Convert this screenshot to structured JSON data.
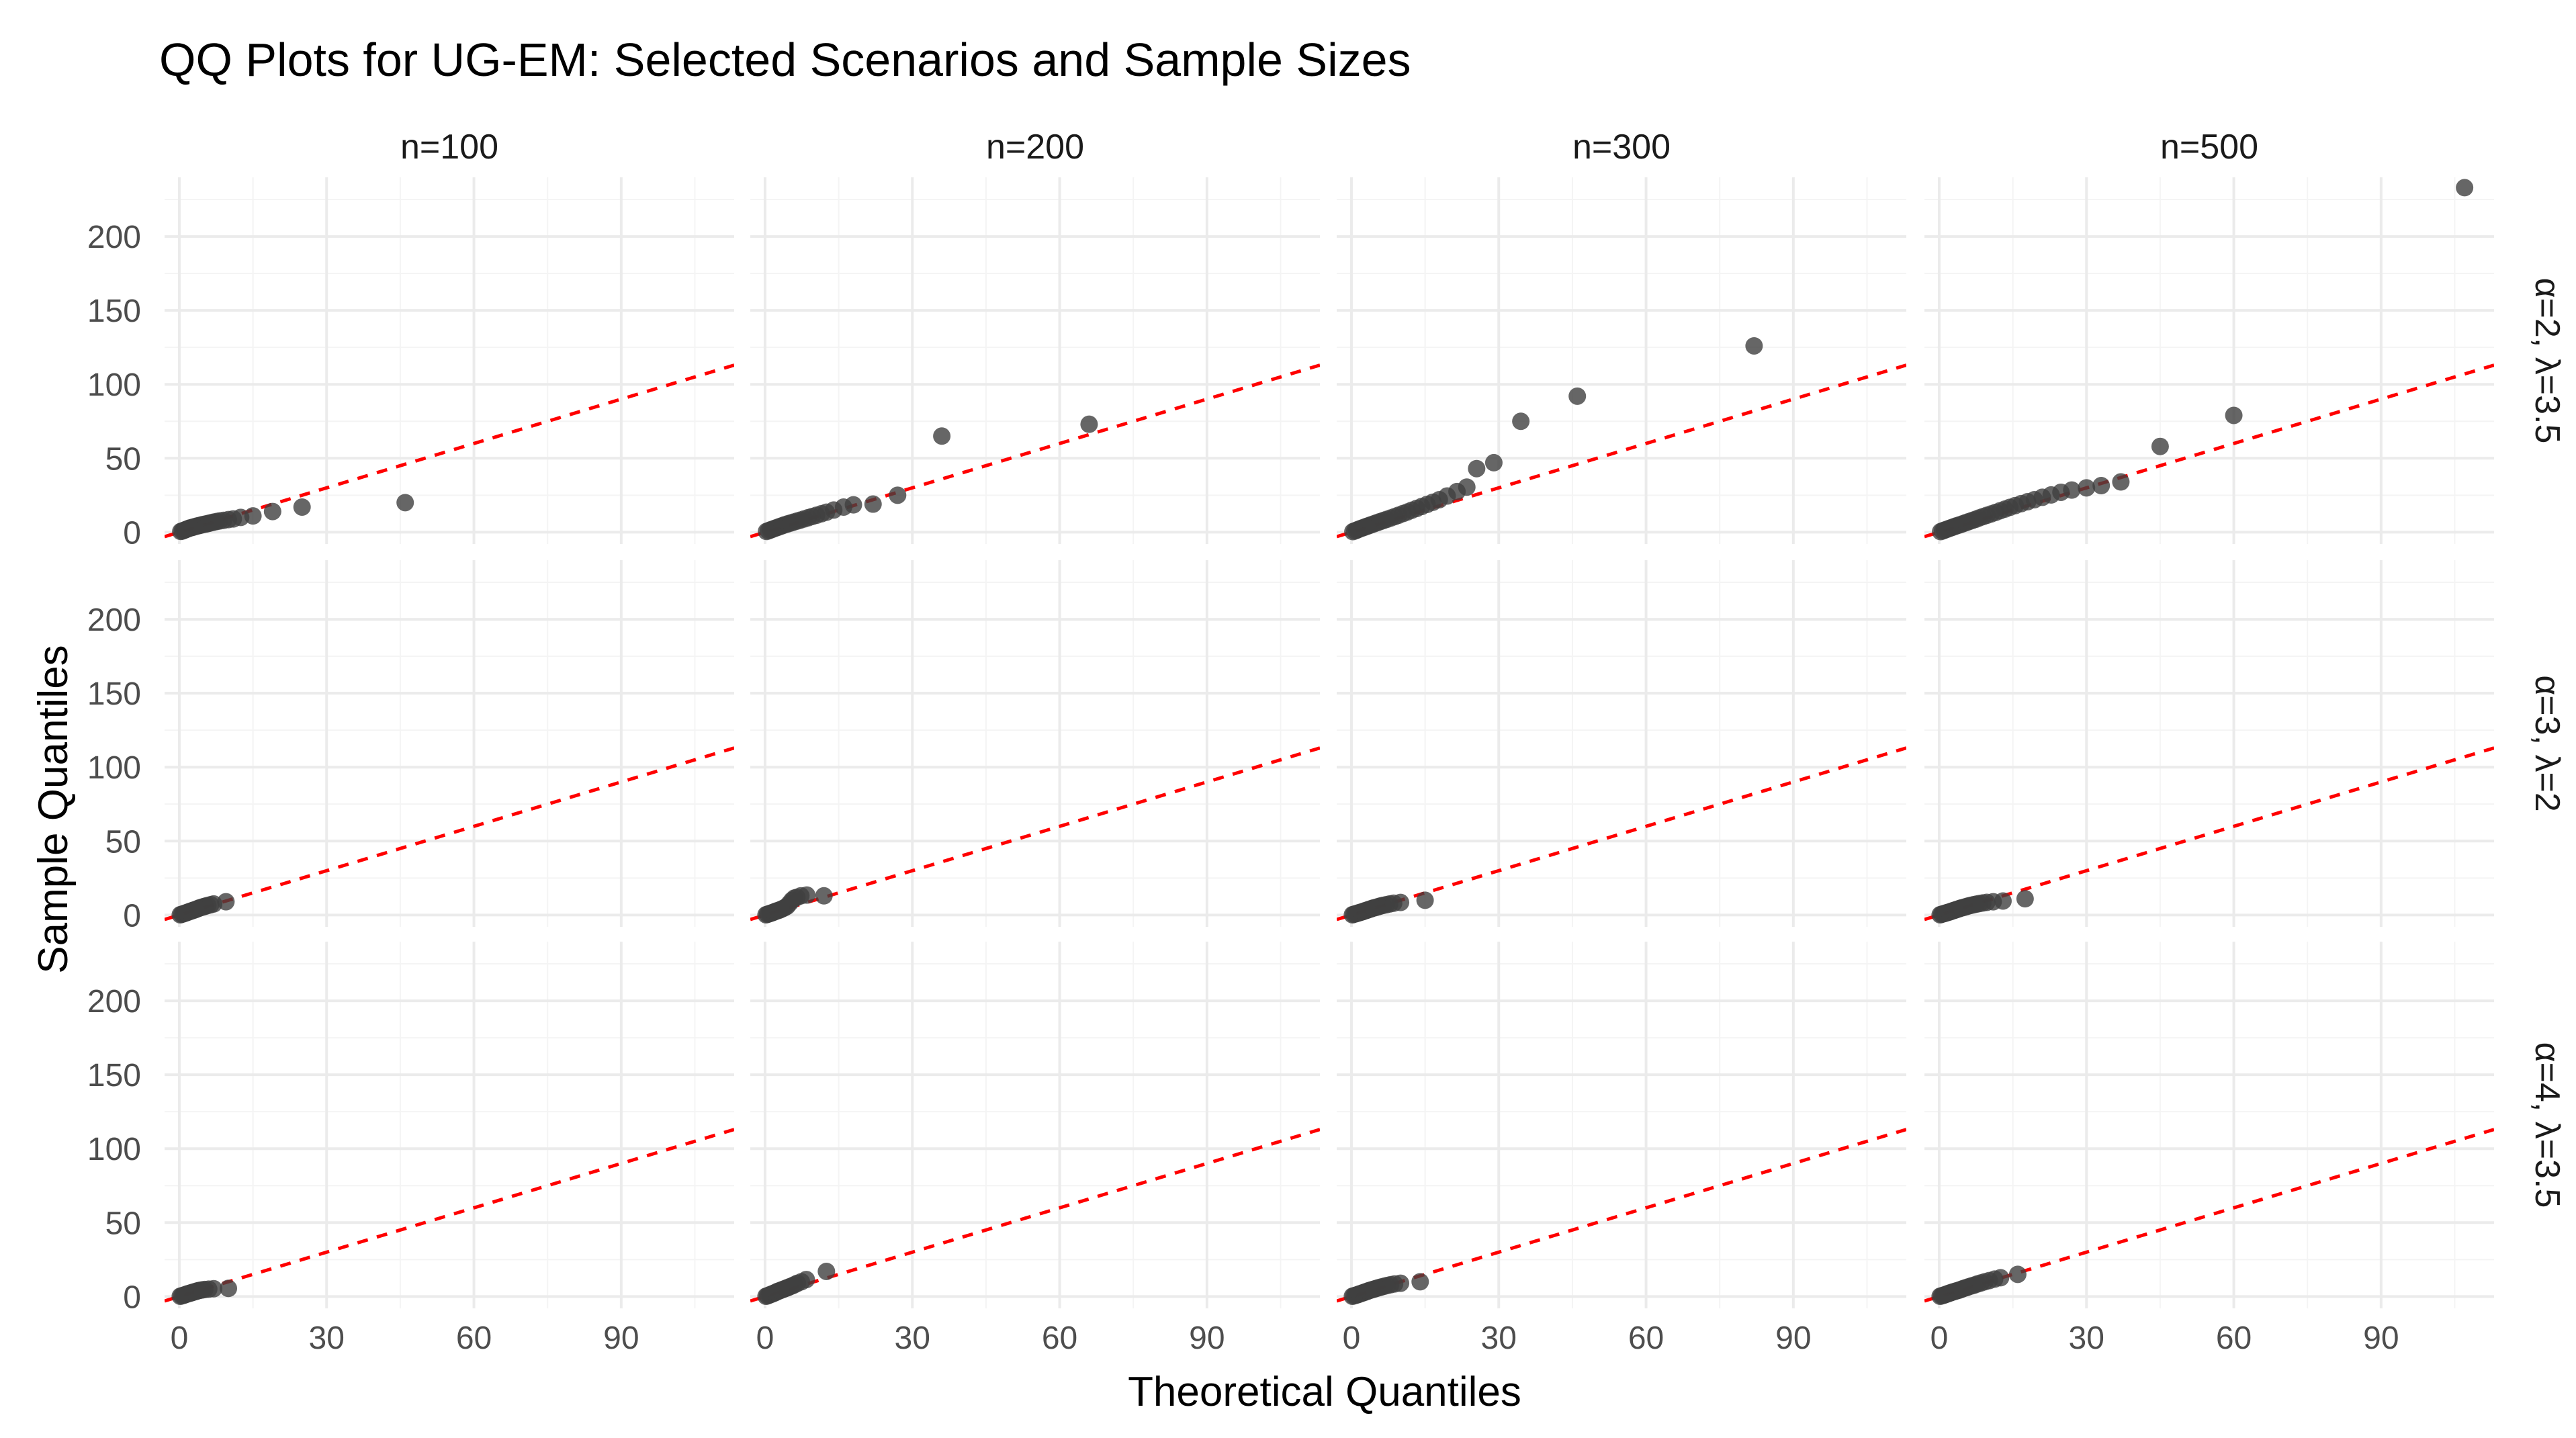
{
  "chart_data": {
    "type": "scatter",
    "title": "QQ Plots for UG-EM: Selected Scenarios and Sample Sizes",
    "xlabel": "Theoretical Quantiles",
    "ylabel": "Sample Quantiles",
    "xlim": [
      -3,
      113
    ],
    "ylim": [
      -8,
      240
    ],
    "x_ticks": [
      0,
      30,
      60,
      90
    ],
    "x_tick_labels": [
      "0",
      "30",
      "60",
      "90"
    ],
    "y_ticks": [
      0,
      50,
      100,
      150,
      200
    ],
    "y_tick_labels": [
      "0",
      "50",
      "100",
      "150",
      "200"
    ],
    "grid": true,
    "columns": [
      "n=100",
      "n=200",
      "n=300",
      "n=500"
    ],
    "rows": [
      "α=2, λ=3.5",
      "α=3, λ=2",
      "α=4, λ=3.5"
    ],
    "reference_line": {
      "type": "identity",
      "slope": 1,
      "intercept": 0,
      "color": "#ff0000",
      "style": "dashed"
    },
    "panels": [
      {
        "row": 0,
        "col": 0,
        "points": [
          [
            0.3,
            0.5
          ],
          [
            0.6,
            0.8
          ],
          [
            0.9,
            1.2
          ],
          [
            1.2,
            1.6
          ],
          [
            1.5,
            2.0
          ],
          [
            1.8,
            2.4
          ],
          [
            2.1,
            2.8
          ],
          [
            2.4,
            3.0
          ],
          [
            2.7,
            3.3
          ],
          [
            3.0,
            3.6
          ],
          [
            3.4,
            4.0
          ],
          [
            3.8,
            4.3
          ],
          [
            4.2,
            4.6
          ],
          [
            4.6,
            5.0
          ],
          [
            5.0,
            5.3
          ],
          [
            5.5,
            5.6
          ],
          [
            6.0,
            6.0
          ],
          [
            6.5,
            6.4
          ],
          [
            7.0,
            6.8
          ],
          [
            7.6,
            7.2
          ],
          [
            8.2,
            7.6
          ],
          [
            9.0,
            8.0
          ],
          [
            10.0,
            8.5
          ],
          [
            11.0,
            9.0
          ],
          [
            12.5,
            10.0
          ],
          [
            15.0,
            11.0
          ],
          [
            19.0,
            14.0
          ],
          [
            25.0,
            17.0
          ],
          [
            46.0,
            20.0
          ]
        ]
      },
      {
        "row": 0,
        "col": 1,
        "points": [
          [
            0.3,
            0.5
          ],
          [
            0.7,
            1.0
          ],
          [
            1.1,
            1.5
          ],
          [
            1.5,
            2.0
          ],
          [
            2.0,
            2.6
          ],
          [
            2.5,
            3.2
          ],
          [
            3.0,
            3.8
          ],
          [
            3.5,
            4.4
          ],
          [
            4.0,
            5.0
          ],
          [
            4.6,
            5.6
          ],
          [
            5.2,
            6.2
          ],
          [
            5.8,
            6.8
          ],
          [
            6.5,
            7.5
          ],
          [
            7.2,
            8.2
          ],
          [
            8.0,
            9.0
          ],
          [
            8.8,
            9.8
          ],
          [
            9.6,
            10.6
          ],
          [
            10.5,
            11.5
          ],
          [
            11.5,
            12.5
          ],
          [
            12.5,
            13.5
          ],
          [
            14.0,
            15.0
          ],
          [
            16.0,
            17.0
          ],
          [
            18.0,
            18.5
          ],
          [
            22.0,
            19.0
          ],
          [
            27.0,
            25.0
          ],
          [
            36.0,
            65.0
          ],
          [
            66.0,
            73.0
          ]
        ]
      },
      {
        "row": 0,
        "col": 2,
        "points": [
          [
            0.3,
            0.4
          ],
          [
            0.7,
            0.9
          ],
          [
            1.1,
            1.4
          ],
          [
            1.5,
            2.0
          ],
          [
            2.0,
            2.6
          ],
          [
            2.5,
            3.2
          ],
          [
            3.0,
            3.8
          ],
          [
            3.5,
            4.4
          ],
          [
            4.0,
            5.0
          ],
          [
            4.6,
            5.7
          ],
          [
            5.2,
            6.4
          ],
          [
            5.8,
            7.1
          ],
          [
            6.5,
            7.9
          ],
          [
            7.2,
            8.7
          ],
          [
            8.0,
            9.6
          ],
          [
            8.8,
            10.5
          ],
          [
            9.6,
            11.5
          ],
          [
            10.5,
            12.6
          ],
          [
            11.4,
            13.7
          ],
          [
            12.3,
            14.9
          ],
          [
            13.3,
            16.1
          ],
          [
            14.3,
            17.4
          ],
          [
            15.4,
            18.8
          ],
          [
            16.6,
            20.3
          ],
          [
            17.9,
            22.0
          ],
          [
            19.5,
            24.5
          ],
          [
            21.5,
            27.5
          ],
          [
            23.5,
            30.5
          ],
          [
            25.5,
            43.0
          ],
          [
            29.0,
            47.0
          ],
          [
            34.5,
            75.0
          ],
          [
            46.0,
            92.0
          ],
          [
            82.0,
            126.0
          ]
        ]
      },
      {
        "row": 0,
        "col": 3,
        "points": [
          [
            0.3,
            0.4
          ],
          [
            0.7,
            0.9
          ],
          [
            1.1,
            1.4
          ],
          [
            1.6,
            2.0
          ],
          [
            2.1,
            2.6
          ],
          [
            2.6,
            3.2
          ],
          [
            3.1,
            3.8
          ],
          [
            3.6,
            4.4
          ],
          [
            4.2,
            5.0
          ],
          [
            4.8,
            5.7
          ],
          [
            5.4,
            6.4
          ],
          [
            6.0,
            7.1
          ],
          [
            6.7,
            7.9
          ],
          [
            7.4,
            8.7
          ],
          [
            8.1,
            9.6
          ],
          [
            8.9,
            10.5
          ],
          [
            9.7,
            11.4
          ],
          [
            10.6,
            12.4
          ],
          [
            11.5,
            13.4
          ],
          [
            12.4,
            14.5
          ],
          [
            13.4,
            15.6
          ],
          [
            14.4,
            16.8
          ],
          [
            15.5,
            18.0
          ],
          [
            16.7,
            19.3
          ],
          [
            18.0,
            20.6
          ],
          [
            19.4,
            22.0
          ],
          [
            21.0,
            23.6
          ],
          [
            22.8,
            25.2
          ],
          [
            24.8,
            27.0
          ],
          [
            27.0,
            28.5
          ],
          [
            30.0,
            30.0
          ],
          [
            33.0,
            31.5
          ],
          [
            37.0,
            34.0
          ],
          [
            45.0,
            58.0
          ],
          [
            60.0,
            79.0
          ],
          [
            107.0,
            233.0
          ]
        ]
      },
      {
        "row": 1,
        "col": 0,
        "points": [
          [
            0.2,
            0.2
          ],
          [
            0.5,
            0.5
          ],
          [
            0.8,
            0.8
          ],
          [
            1.1,
            1.2
          ],
          [
            1.4,
            1.5
          ],
          [
            1.7,
            1.9
          ],
          [
            2.0,
            2.2
          ],
          [
            2.3,
            2.6
          ],
          [
            2.6,
            2.9
          ],
          [
            2.9,
            3.3
          ],
          [
            3.2,
            3.6
          ],
          [
            3.5,
            4.0
          ],
          [
            3.8,
            4.4
          ],
          [
            4.1,
            4.8
          ],
          [
            4.5,
            5.2
          ],
          [
            4.9,
            5.6
          ],
          [
            5.3,
            6.0
          ],
          [
            5.8,
            6.5
          ],
          [
            6.4,
            7.0
          ],
          [
            7.0,
            7.5
          ],
          [
            9.5,
            9.0
          ]
        ]
      },
      {
        "row": 1,
        "col": 1,
        "points": [
          [
            0.2,
            0.2
          ],
          [
            0.5,
            0.5
          ],
          [
            0.8,
            0.8
          ],
          [
            1.1,
            1.2
          ],
          [
            1.4,
            1.5
          ],
          [
            1.7,
            1.9
          ],
          [
            2.0,
            2.3
          ],
          [
            2.3,
            2.7
          ],
          [
            2.7,
            3.1
          ],
          [
            3.1,
            3.6
          ],
          [
            3.5,
            4.2
          ],
          [
            4.0,
            5.0
          ],
          [
            4.5,
            6.0
          ],
          [
            5.0,
            8.0
          ],
          [
            5.5,
            10.0
          ],
          [
            6.0,
            11.5
          ],
          [
            6.5,
            12.0
          ],
          [
            7.3,
            13.0
          ],
          [
            8.5,
            13.5
          ],
          [
            12.0,
            13.0
          ]
        ]
      },
      {
        "row": 1,
        "col": 2,
        "points": [
          [
            0.2,
            0.2
          ],
          [
            0.5,
            0.5
          ],
          [
            0.8,
            0.8
          ],
          [
            1.1,
            1.1
          ],
          [
            1.4,
            1.4
          ],
          [
            1.7,
            1.7
          ],
          [
            2.0,
            2.0
          ],
          [
            2.3,
            2.3
          ],
          [
            2.6,
            2.7
          ],
          [
            2.9,
            3.0
          ],
          [
            3.2,
            3.3
          ],
          [
            3.5,
            3.7
          ],
          [
            3.8,
            4.0
          ],
          [
            4.1,
            4.3
          ],
          [
            4.4,
            4.7
          ],
          [
            4.8,
            5.0
          ],
          [
            5.2,
            5.4
          ],
          [
            5.6,
            5.8
          ],
          [
            6.0,
            6.2
          ],
          [
            6.5,
            6.6
          ],
          [
            7.1,
            7.0
          ],
          [
            7.8,
            7.5
          ],
          [
            8.6,
            8.0
          ],
          [
            10.0,
            8.5
          ],
          [
            15.0,
            10.0
          ]
        ]
      },
      {
        "row": 1,
        "col": 3,
        "points": [
          [
            0.2,
            0.2
          ],
          [
            0.5,
            0.5
          ],
          [
            0.8,
            0.8
          ],
          [
            1.1,
            1.1
          ],
          [
            1.4,
            1.4
          ],
          [
            1.7,
            1.7
          ],
          [
            2.0,
            2.0
          ],
          [
            2.3,
            2.3
          ],
          [
            2.6,
            2.7
          ],
          [
            2.9,
            3.0
          ],
          [
            3.2,
            3.3
          ],
          [
            3.5,
            3.7
          ],
          [
            3.8,
            4.0
          ],
          [
            4.1,
            4.3
          ],
          [
            4.4,
            4.7
          ],
          [
            4.8,
            5.0
          ],
          [
            5.2,
            5.4
          ],
          [
            5.6,
            5.8
          ],
          [
            6.0,
            6.2
          ],
          [
            6.5,
            6.6
          ],
          [
            7.0,
            7.0
          ],
          [
            7.6,
            7.4
          ],
          [
            8.2,
            7.8
          ],
          [
            8.9,
            8.2
          ],
          [
            9.7,
            8.6
          ],
          [
            11.0,
            9.0
          ],
          [
            13.0,
            9.5
          ],
          [
            17.5,
            11.0
          ]
        ]
      },
      {
        "row": 2,
        "col": 0,
        "points": [
          [
            0.2,
            0.2
          ],
          [
            0.5,
            0.5
          ],
          [
            0.8,
            0.8
          ],
          [
            1.1,
            1.1
          ],
          [
            1.4,
            1.5
          ],
          [
            1.7,
            1.8
          ],
          [
            2.0,
            2.1
          ],
          [
            2.3,
            2.4
          ],
          [
            2.6,
            2.7
          ],
          [
            2.9,
            3.0
          ],
          [
            3.2,
            3.3
          ],
          [
            3.5,
            3.6
          ],
          [
            3.8,
            3.9
          ],
          [
            4.2,
            4.2
          ],
          [
            4.7,
            4.5
          ],
          [
            5.2,
            4.8
          ],
          [
            6.0,
            5.0
          ],
          [
            7.0,
            5.3
          ],
          [
            10.0,
            5.5
          ]
        ]
      },
      {
        "row": 2,
        "col": 1,
        "points": [
          [
            0.2,
            0.2
          ],
          [
            0.5,
            0.5
          ],
          [
            0.8,
            0.9
          ],
          [
            1.1,
            1.3
          ],
          [
            1.4,
            1.7
          ],
          [
            1.7,
            2.1
          ],
          [
            2.0,
            2.5
          ],
          [
            2.3,
            3.0
          ],
          [
            2.6,
            3.5
          ],
          [
            3.0,
            4.0
          ],
          [
            3.4,
            4.5
          ],
          [
            3.8,
            5.0
          ],
          [
            4.2,
            5.5
          ],
          [
            4.6,
            6.0
          ],
          [
            5.0,
            6.6
          ],
          [
            5.5,
            7.2
          ],
          [
            6.0,
            8.0
          ],
          [
            6.6,
            9.0
          ],
          [
            7.4,
            10.0
          ],
          [
            8.4,
            11.5
          ],
          [
            12.5,
            17.0
          ]
        ]
      },
      {
        "row": 2,
        "col": 2,
        "points": [
          [
            0.2,
            0.2
          ],
          [
            0.5,
            0.5
          ],
          [
            0.8,
            0.8
          ],
          [
            1.1,
            1.1
          ],
          [
            1.4,
            1.4
          ],
          [
            1.7,
            1.8
          ],
          [
            2.0,
            2.1
          ],
          [
            2.3,
            2.5
          ],
          [
            2.6,
            2.8
          ],
          [
            2.9,
            3.2
          ],
          [
            3.2,
            3.5
          ],
          [
            3.5,
            3.9
          ],
          [
            3.9,
            4.3
          ],
          [
            4.3,
            4.7
          ],
          [
            4.7,
            5.1
          ],
          [
            5.1,
            5.5
          ],
          [
            5.6,
            6.0
          ],
          [
            6.1,
            6.5
          ],
          [
            6.7,
            7.0
          ],
          [
            7.3,
            7.5
          ],
          [
            8.0,
            8.0
          ],
          [
            8.8,
            8.5
          ],
          [
            10.0,
            9.0
          ],
          [
            14.0,
            10.0
          ]
        ]
      },
      {
        "row": 2,
        "col": 3,
        "points": [
          [
            0.2,
            0.2
          ],
          [
            0.5,
            0.5
          ],
          [
            0.8,
            0.8
          ],
          [
            1.1,
            1.1
          ],
          [
            1.4,
            1.5
          ],
          [
            1.7,
            1.8
          ],
          [
            2.0,
            2.2
          ],
          [
            2.3,
            2.5
          ],
          [
            2.6,
            2.9
          ],
          [
            3.0,
            3.3
          ],
          [
            3.4,
            3.7
          ],
          [
            3.8,
            4.1
          ],
          [
            4.2,
            4.5
          ],
          [
            4.6,
            5.0
          ],
          [
            5.0,
            5.5
          ],
          [
            5.5,
            6.0
          ],
          [
            6.0,
            6.6
          ],
          [
            6.6,
            7.2
          ],
          [
            7.2,
            7.8
          ],
          [
            7.8,
            8.5
          ],
          [
            8.5,
            9.2
          ],
          [
            9.3,
            10.0
          ],
          [
            10.2,
            10.8
          ],
          [
            11.3,
            11.8
          ],
          [
            12.5,
            12.7
          ],
          [
            16.0,
            15.0
          ]
        ]
      }
    ]
  }
}
